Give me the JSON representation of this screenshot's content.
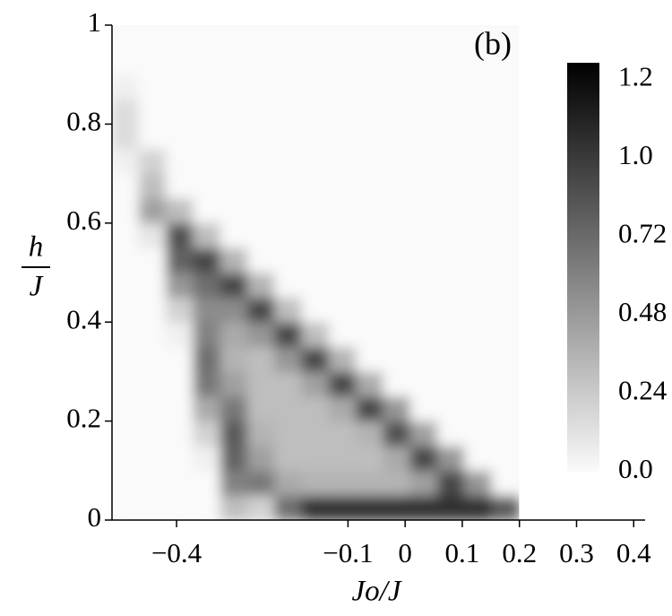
{
  "chart_data": {
    "type": "heatmap",
    "annotation": "(b)",
    "xlabel": "Jo/J",
    "ylabel": {
      "numerator": "h",
      "denominator": "J"
    },
    "xlim": [
      -0.513,
      0.42
    ],
    "ylim": [
      0,
      1
    ],
    "xticks": [
      {
        "value": -0.4,
        "label": "−0.4"
      },
      {
        "value": -0.1,
        "label": "−0.1"
      },
      0,
      0.1,
      0.2,
      0.3,
      0.4
    ],
    "yticks": [
      0,
      0.2,
      0.4,
      0.6,
      0.8,
      1
    ],
    "colormap": [
      "#fafafa",
      "#000000"
    ],
    "clim": [
      0,
      1.25
    ],
    "cticks": [
      {
        "value": 0,
        "label": "0.0"
      },
      0.24,
      0.48,
      0.72,
      {
        "value": 0.96,
        "label": "1.0"
      },
      1.2
    ],
    "xbins": [
      -0.513,
      -0.4655,
      -0.418,
      -0.3705,
      -0.323,
      -0.2755,
      -0.228,
      -0.1805,
      -0.133,
      -0.0855,
      -0.038,
      0.0095,
      0.057,
      0.1045,
      0.152,
      0.1995
    ],
    "ybins": [
      0,
      0.05,
      0.1,
      0.15,
      0.2,
      0.25,
      0.3,
      0.35,
      0.4,
      0.45,
      0.5,
      0.55,
      0.6,
      0.65,
      0.7,
      0.75,
      0.8,
      0.85,
      0.9,
      0.95,
      1
    ],
    "z": [
      [
        0,
        0,
        0,
        0,
        0.3,
        0.2,
        0.7,
        1.0,
        1.0,
        1.0,
        1.0,
        1.0,
        1.0,
        1.0,
        0.8
      ],
      [
        0,
        0,
        0,
        0,
        0.6,
        0.65,
        0.4,
        0.35,
        0.35,
        0.35,
        0.35,
        0.45,
        0.9,
        0.5,
        0
      ],
      [
        0,
        0,
        0,
        0.05,
        0.75,
        0.45,
        0.3,
        0.3,
        0.3,
        0.3,
        0.4,
        0.9,
        0.5,
        0,
        0
      ],
      [
        0,
        0,
        0,
        0.2,
        0.8,
        0.35,
        0.3,
        0.3,
        0.3,
        0.35,
        0.85,
        0.45,
        0,
        0,
        0
      ],
      [
        0,
        0,
        0,
        0.4,
        0.65,
        0.3,
        0.3,
        0.3,
        0.4,
        0.9,
        0.5,
        0,
        0,
        0,
        0
      ],
      [
        0,
        0,
        0,
        0.65,
        0.45,
        0.3,
        0.3,
        0.45,
        0.9,
        0.4,
        0,
        0,
        0,
        0,
        0
      ],
      [
        0,
        0,
        0,
        0.7,
        0.35,
        0.3,
        0.5,
        0.9,
        0.35,
        0,
        0,
        0,
        0,
        0,
        0
      ],
      [
        0,
        0,
        0.05,
        0.6,
        0.4,
        0.5,
        0.9,
        0.3,
        0,
        0,
        0,
        0,
        0,
        0,
        0
      ],
      [
        0,
        0,
        0.2,
        0.55,
        0.55,
        0.9,
        0.3,
        0,
        0,
        0,
        0,
        0,
        0,
        0,
        0
      ],
      [
        0,
        0,
        0.5,
        0.7,
        0.9,
        0.35,
        0,
        0,
        0,
        0,
        0,
        0,
        0,
        0,
        0
      ],
      [
        0,
        0,
        0.75,
        0.9,
        0.35,
        0,
        0,
        0,
        0,
        0,
        0,
        0,
        0,
        0,
        0
      ],
      [
        0,
        0.1,
        0.85,
        0.3,
        0,
        0,
        0,
        0,
        0,
        0,
        0,
        0,
        0,
        0,
        0
      ],
      [
        0,
        0.45,
        0.3,
        0,
        0,
        0,
        0,
        0,
        0,
        0,
        0,
        0,
        0,
        0,
        0
      ],
      [
        0,
        0.3,
        0,
        0,
        0,
        0,
        0,
        0,
        0,
        0,
        0,
        0,
        0,
        0,
        0
      ],
      [
        0.05,
        0.2,
        0,
        0,
        0,
        0,
        0,
        0,
        0,
        0,
        0,
        0,
        0,
        0,
        0
      ],
      [
        0.15,
        0,
        0,
        0,
        0,
        0,
        0,
        0,
        0,
        0,
        0,
        0,
        0,
        0,
        0
      ],
      [
        0.15,
        0,
        0,
        0,
        0,
        0,
        0,
        0,
        0,
        0,
        0,
        0,
        0,
        0,
        0
      ],
      [
        0.05,
        0,
        0,
        0,
        0,
        0,
        0,
        0,
        0,
        0,
        0,
        0,
        0,
        0,
        0
      ],
      [
        0,
        0,
        0,
        0,
        0,
        0,
        0,
        0,
        0,
        0,
        0,
        0,
        0,
        0,
        0
      ],
      [
        0,
        0,
        0,
        0,
        0,
        0,
        0,
        0,
        0,
        0,
        0,
        0,
        0,
        0,
        0
      ]
    ]
  }
}
